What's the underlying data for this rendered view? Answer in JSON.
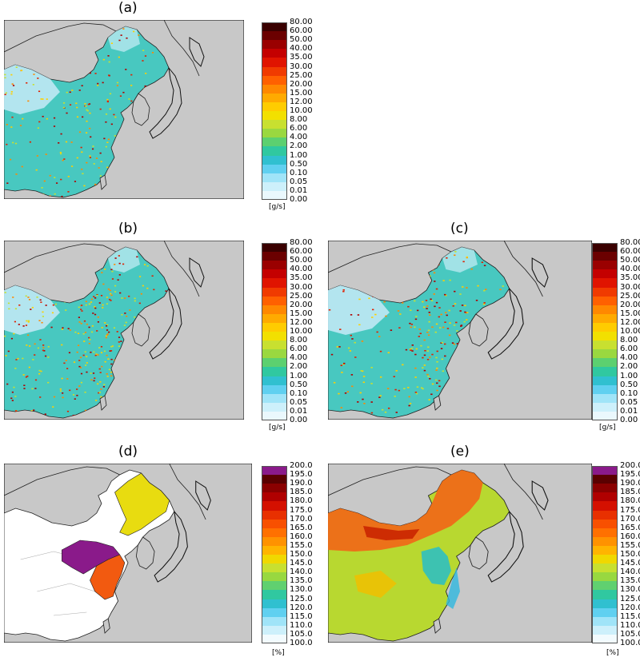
{
  "panels": [
    {
      "label": "(a)",
      "type": "emission",
      "scale": "emission",
      "unit": "[g/s]"
    },
    {
      "label": "(b)",
      "type": "emission",
      "scale": "emission",
      "unit": "[g/s]"
    },
    {
      "label": "(c)",
      "type": "emission",
      "scale": "emission",
      "unit": "[g/s]"
    },
    {
      "label": "(d)",
      "type": "ratio-d",
      "scale": "percent",
      "unit": "[%]"
    },
    {
      "label": "(e)",
      "type": "ratio-e",
      "scale": "percent",
      "unit": "[%]"
    }
  ],
  "scales": {
    "emission": {
      "ticks": [
        "80.00",
        "60.00",
        "50.00",
        "40.00",
        "35.00",
        "30.00",
        "25.00",
        "20.00",
        "15.00",
        "12.00",
        "10.00",
        "8.00",
        "6.00",
        "4.00",
        "2.00",
        "1.00",
        "0.50",
        "0.10",
        "0.05",
        "0.01",
        "0.00"
      ],
      "colors": [
        "#3a0000",
        "#6b0000",
        "#9a0000",
        "#c40000",
        "#e01400",
        "#f03a00",
        "#ff6000",
        "#ff8800",
        "#ffaa00",
        "#ffcc00",
        "#f2e000",
        "#c8e030",
        "#9ad840",
        "#5cd070",
        "#30c8a0",
        "#30c0d0",
        "#60d0f0",
        "#a0e4f8",
        "#cdf0fb",
        "#eaf8fd"
      ]
    },
    "percent": {
      "ticks": [
        "200.0",
        "195.0",
        "190.0",
        "185.0",
        "180.0",
        "175.0",
        "170.0",
        "165.0",
        "160.0",
        "155.0",
        "150.0",
        "145.0",
        "140.0",
        "135.0",
        "130.0",
        "125.0",
        "120.0",
        "115.0",
        "110.0",
        "105.0",
        "100.0"
      ],
      "colors": [
        "#8a1a8a",
        "#5a0000",
        "#8a0000",
        "#b00000",
        "#d41000",
        "#e83000",
        "#f85000",
        "#ff7000",
        "#ff9200",
        "#ffb400",
        "#f0d800",
        "#c8e030",
        "#98d840",
        "#60d070",
        "#30c8a0",
        "#30c0d0",
        "#60d0f0",
        "#a0e4f8",
        "#cdf0fb",
        "#f2fbfe"
      ]
    }
  }
}
